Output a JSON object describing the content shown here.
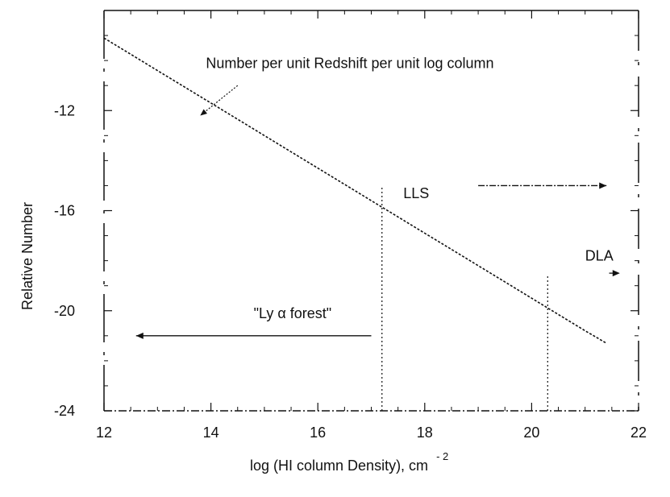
{
  "chart_data": {
    "type": "line",
    "title": "",
    "xlabel": "log (HI  column Density), cm",
    "xlabel_superscript": "- 2",
    "ylabel": "Relative Number",
    "xlim": [
      12,
      22
    ],
    "ylim": [
      -24,
      -8
    ],
    "grid": false,
    "legend": "none",
    "x_ticks": [
      12,
      14,
      16,
      18,
      20,
      22
    ],
    "y_ticks": [
      -12,
      -16,
      -20,
      -24
    ],
    "x_tick_labels": [
      "12",
      "14",
      "16",
      "18",
      "20",
      "22"
    ],
    "y_tick_labels": [
      "-12",
      "-16",
      "-20",
      "-24"
    ],
    "series": [
      {
        "x": [
          12,
          12.5,
          13,
          13.5,
          14,
          14.5,
          15,
          15.5,
          16,
          16.5,
          17,
          17.5,
          18,
          18.5,
          19,
          19.5,
          20,
          20.5,
          21,
          21.4
        ],
        "y": [
          -9.1,
          -9.75,
          -10.4,
          -11.05,
          -11.7,
          -12.35,
          -13.0,
          -13.65,
          -14.3,
          -14.95,
          -15.6,
          -16.25,
          -16.9,
          -17.55,
          -18.2,
          -18.85,
          -19.5,
          -20.15,
          -20.8,
          -21.3
        ]
      }
    ],
    "regions": [
      {
        "label": "\"Ly α   forest\"",
        "x_boundary": 17.2,
        "direction": "left",
        "label_x": 14.8,
        "label_y": -20.3,
        "arrow_y": -21.0,
        "arrow_from": 17.0,
        "arrow_to": 12.6
      },
      {
        "label": "LLS",
        "x_boundary": 17.2,
        "direction": "right",
        "label_x": 17.6,
        "label_y": -15.5,
        "arrow_y": -15.0,
        "arrow_from": 19.0,
        "arrow_to": 21.4,
        "line_top": -15.0
      },
      {
        "label": "DLA",
        "x_boundary": 20.3,
        "direction": "right",
        "label_x": 21.0,
        "label_y": -18.0,
        "arrow_y": -18.5,
        "arrow_from": 21.45,
        "arrow_to": 21.65,
        "line_top": -18.6
      }
    ],
    "annotations": [
      {
        "text": "Number per unit Redshift per unit log column",
        "x": 16.6,
        "y": -10.3,
        "arrow_from": [
          14.5,
          -11.0
        ],
        "arrow_to": [
          13.8,
          -12.2
        ]
      }
    ],
    "colors": {
      "line": "#111111",
      "frame": "#111111",
      "background": "#ffffff"
    }
  }
}
